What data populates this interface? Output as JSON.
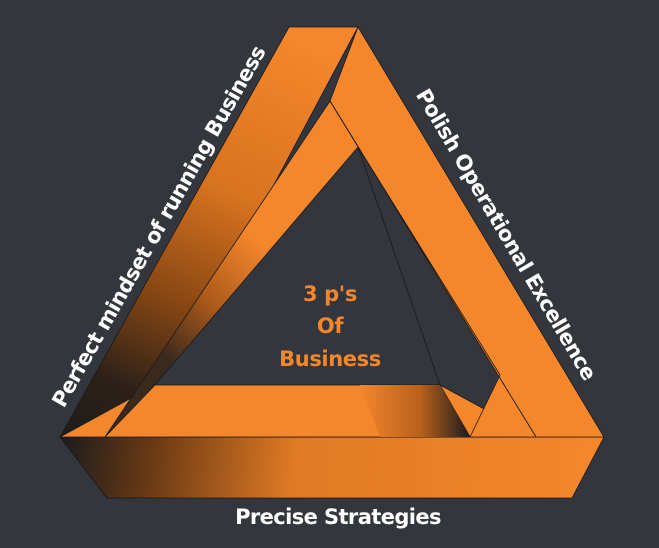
{
  "diagram": {
    "center_text": [
      "3 p's",
      "Of",
      "Business"
    ],
    "labels": {
      "left": "Perfect mindset of running Business",
      "right": "Polish Operational Excellence",
      "bottom": "Precise Strategies"
    },
    "colors": {
      "background": "#33363d",
      "orange": "#f4862b",
      "shade": "#1f1f22",
      "label": "#ffffff",
      "center_text": "#f4862b"
    }
  }
}
